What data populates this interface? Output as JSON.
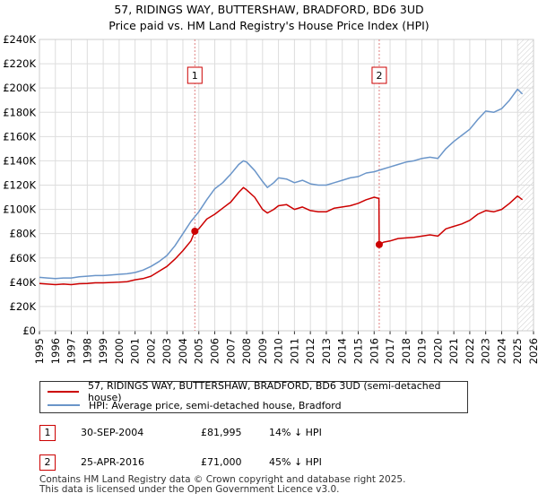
{
  "title_line1": "57, RIDINGS WAY, BUTTERSHAW, BRADFORD, BD6 3UD",
  "title_line2": "Price paid vs. HM Land Registry's House Price Index (HPI)",
  "colors": {
    "property": "#cc0000",
    "hpi": "#6a95c9",
    "grid": "#dddddd",
    "vline": "#e08080"
  },
  "chart_data": {
    "type": "line",
    "xlim": [
      1995,
      2026
    ],
    "ylim": [
      0,
      240000
    ],
    "x_ticks": [
      "1995",
      "1996",
      "1997",
      "1998",
      "1999",
      "2000",
      "2001",
      "2002",
      "2003",
      "2004",
      "2005",
      "2006",
      "2007",
      "2008",
      "2009",
      "2010",
      "2011",
      "2012",
      "2013",
      "2014",
      "2015",
      "2016",
      "2017",
      "2018",
      "2019",
      "2020",
      "2021",
      "2022",
      "2023",
      "2024",
      "2025",
      "2026"
    ],
    "y_ticks": [
      {
        "value": 0,
        "label": "£0"
      },
      {
        "value": 20000,
        "label": "£20K"
      },
      {
        "value": 40000,
        "label": "£40K"
      },
      {
        "value": 60000,
        "label": "£60K"
      },
      {
        "value": 80000,
        "label": "£80K"
      },
      {
        "value": 100000,
        "label": "£100K"
      },
      {
        "value": 120000,
        "label": "£120K"
      },
      {
        "value": 140000,
        "label": "£140K"
      },
      {
        "value": 160000,
        "label": "£160K"
      },
      {
        "value": 180000,
        "label": "£180K"
      },
      {
        "value": 200000,
        "label": "£200K"
      },
      {
        "value": 220000,
        "label": "£220K"
      },
      {
        "value": 240000,
        "label": "£240K"
      }
    ],
    "series": [
      {
        "name": "57, RIDINGS WAY, BUTTERSHAW, BRADFORD, BD6 3UD (semi-detached house)",
        "color": "#cc0000",
        "points": [
          [
            1995.0,
            39000
          ],
          [
            1995.5,
            38500
          ],
          [
            1996.0,
            38000
          ],
          [
            1996.5,
            38500
          ],
          [
            1997.0,
            38000
          ],
          [
            1997.5,
            38800
          ],
          [
            1998.0,
            39000
          ],
          [
            1998.5,
            39500
          ],
          [
            1999.0,
            39500
          ],
          [
            1999.5,
            39800
          ],
          [
            2000.0,
            40000
          ],
          [
            2000.5,
            40500
          ],
          [
            2001.0,
            42000
          ],
          [
            2001.5,
            43000
          ],
          [
            2002.0,
            45000
          ],
          [
            2002.5,
            49000
          ],
          [
            2003.0,
            53000
          ],
          [
            2003.5,
            59000
          ],
          [
            2004.0,
            66000
          ],
          [
            2004.5,
            74000
          ],
          [
            2004.75,
            81995
          ],
          [
            2005.0,
            84000
          ],
          [
            2005.5,
            92000
          ],
          [
            2006.0,
            96000
          ],
          [
            2006.5,
            101000
          ],
          [
            2007.0,
            106000
          ],
          [
            2007.5,
            114000
          ],
          [
            2007.8,
            118000
          ],
          [
            2008.0,
            116000
          ],
          [
            2008.5,
            110000
          ],
          [
            2009.0,
            100000
          ],
          [
            2009.3,
            97000
          ],
          [
            2009.7,
            100000
          ],
          [
            2010.0,
            103000
          ],
          [
            2010.5,
            104000
          ],
          [
            2011.0,
            100000
          ],
          [
            2011.5,
            102000
          ],
          [
            2012.0,
            99000
          ],
          [
            2012.5,
            98000
          ],
          [
            2013.0,
            98000
          ],
          [
            2013.5,
            101000
          ],
          [
            2014.0,
            102000
          ],
          [
            2014.5,
            103000
          ],
          [
            2015.0,
            105000
          ],
          [
            2015.5,
            108000
          ],
          [
            2016.0,
            110000
          ],
          [
            2016.3,
            109000
          ],
          [
            2016.32,
            71000
          ],
          [
            2016.6,
            73000
          ],
          [
            2017.0,
            74000
          ],
          [
            2017.5,
            76000
          ],
          [
            2018.0,
            76500
          ],
          [
            2018.5,
            77000
          ],
          [
            2019.0,
            78000
          ],
          [
            2019.5,
            79000
          ],
          [
            2020.0,
            78000
          ],
          [
            2020.5,
            84000
          ],
          [
            2021.0,
            86000
          ],
          [
            2021.5,
            88000
          ],
          [
            2022.0,
            91000
          ],
          [
            2022.5,
            96000
          ],
          [
            2023.0,
            99000
          ],
          [
            2023.5,
            98000
          ],
          [
            2024.0,
            100000
          ],
          [
            2024.5,
            105000
          ],
          [
            2025.0,
            111000
          ],
          [
            2025.3,
            108000
          ]
        ]
      },
      {
        "name": "HPI: Average price, semi-detached house, Bradford",
        "color": "#6a95c9",
        "points": [
          [
            1995.0,
            44000
          ],
          [
            1995.5,
            43500
          ],
          [
            1996.0,
            43000
          ],
          [
            1996.5,
            43500
          ],
          [
            1997.0,
            43500
          ],
          [
            1997.5,
            44500
          ],
          [
            1998.0,
            45000
          ],
          [
            1998.5,
            45500
          ],
          [
            1999.0,
            45500
          ],
          [
            1999.5,
            46000
          ],
          [
            2000.0,
            46500
          ],
          [
            2000.5,
            47000
          ],
          [
            2001.0,
            48000
          ],
          [
            2001.5,
            50000
          ],
          [
            2002.0,
            53000
          ],
          [
            2002.5,
            57000
          ],
          [
            2003.0,
            62000
          ],
          [
            2003.5,
            70000
          ],
          [
            2004.0,
            80000
          ],
          [
            2004.5,
            90000
          ],
          [
            2005.0,
            98000
          ],
          [
            2005.5,
            108000
          ],
          [
            2006.0,
            117000
          ],
          [
            2006.5,
            122000
          ],
          [
            2007.0,
            129000
          ],
          [
            2007.5,
            137000
          ],
          [
            2007.8,
            140000
          ],
          [
            2008.0,
            139000
          ],
          [
            2008.5,
            132000
          ],
          [
            2009.0,
            123000
          ],
          [
            2009.3,
            118000
          ],
          [
            2009.7,
            122000
          ],
          [
            2010.0,
            126000
          ],
          [
            2010.5,
            125000
          ],
          [
            2011.0,
            122000
          ],
          [
            2011.5,
            124000
          ],
          [
            2012.0,
            121000
          ],
          [
            2012.5,
            120000
          ],
          [
            2013.0,
            120000
          ],
          [
            2013.5,
            122000
          ],
          [
            2014.0,
            124000
          ],
          [
            2014.5,
            126000
          ],
          [
            2015.0,
            127000
          ],
          [
            2015.5,
            130000
          ],
          [
            2016.0,
            131000
          ],
          [
            2016.5,
            133000
          ],
          [
            2017.0,
            135000
          ],
          [
            2017.5,
            137000
          ],
          [
            2018.0,
            139000
          ],
          [
            2018.5,
            140000
          ],
          [
            2019.0,
            142000
          ],
          [
            2019.5,
            143000
          ],
          [
            2020.0,
            142000
          ],
          [
            2020.5,
            150000
          ],
          [
            2021.0,
            156000
          ],
          [
            2021.5,
            161000
          ],
          [
            2022.0,
            166000
          ],
          [
            2022.5,
            174000
          ],
          [
            2023.0,
            181000
          ],
          [
            2023.5,
            180000
          ],
          [
            2024.0,
            183000
          ],
          [
            2024.5,
            190000
          ],
          [
            2025.0,
            199000
          ],
          [
            2025.3,
            195000
          ]
        ]
      }
    ],
    "sales": [
      {
        "label": "1",
        "x": 2004.75,
        "y": 81995
      },
      {
        "label": "2",
        "x": 2016.32,
        "y": 71000
      }
    ],
    "forecast_start": 2025.0
  },
  "legend": {
    "property_label": "57, RIDINGS WAY, BUTTERSHAW, BRADFORD, BD6 3UD (semi-detached house)",
    "hpi_label": "HPI: Average price, semi-detached house, Bradford"
  },
  "sales_table": [
    {
      "badge": "1",
      "date": "30-SEP-2004",
      "price": "£81,995",
      "hpi": "14% ↓ HPI"
    },
    {
      "badge": "2",
      "date": "25-APR-2016",
      "price": "£71,000",
      "hpi": "45% ↓ HPI"
    }
  ],
  "footer_line1": "Contains HM Land Registry data © Crown copyright and database right 2025.",
  "footer_line2": "This data is licensed under the Open Government Licence v3.0."
}
